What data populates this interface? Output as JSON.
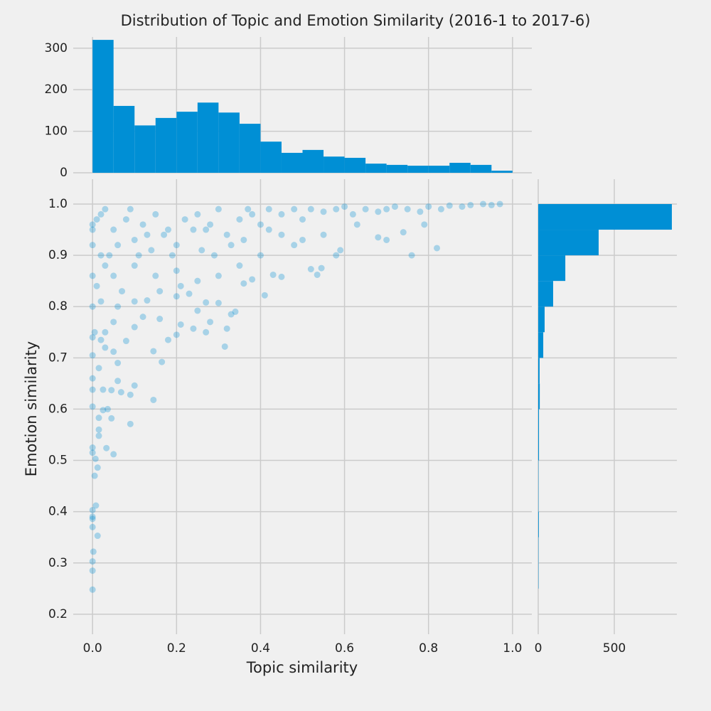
{
  "chart_data": [
    {
      "type": "scatter",
      "title": "Distribution of Topic and Emotion Similarity (2016-1 to 2017-6)",
      "xlabel": "Topic similarity",
      "ylabel": "Emotion similarity",
      "color": "#008fd5",
      "grid": true,
      "xlim": [
        -0.046,
        1.046
      ],
      "ylim": [
        0.161,
        1.0485
      ],
      "xticks": [
        {
          "value": 0,
          "label": "0.0"
        },
        0.2,
        0.4,
        0.6,
        0.8,
        {
          "value": 1,
          "label": "1.0"
        }
      ],
      "yticks": [
        0.2,
        0.3,
        0.4,
        0.5,
        0.6,
        0.7,
        0.8,
        0.9,
        {
          "value": 1,
          "label": "1.0"
        }
      ],
      "x": [
        0,
        0,
        0,
        0.002,
        0.012,
        0,
        0,
        0,
        0,
        0.008,
        0.005,
        0.012,
        0.007,
        0,
        0,
        0.05,
        0.033,
        0.015,
        0.015,
        0.045,
        0.09,
        0.015,
        0.025,
        0,
        0.036,
        0.145,
        0,
        0.025,
        0.045,
        0.068,
        0.09,
        0.1,
        0.06,
        0,
        0.015,
        0.06,
        0.165,
        0,
        0.05,
        0.145,
        0.08,
        0.02,
        0,
        0.18,
        0.315,
        0.03,
        0.1,
        0.2,
        0.27,
        0.24,
        0.32,
        0.28,
        0.21,
        0.05,
        0.16,
        0.25,
        0.12,
        0.33,
        0.34,
        0,
        0.06,
        0.02,
        0.1,
        0.13,
        0.2,
        0.23,
        0.27,
        0.3,
        0.41,
        0.36,
        0.43,
        0.38,
        0.52,
        0.535,
        0.545,
        0.45,
        0.58,
        0.59,
        0.7,
        0.68,
        0.76,
        0.82,
        0.74,
        0.79,
        0.63,
        0.55,
        0.5,
        0.48,
        0.45,
        0.4,
        0.35,
        0.3,
        0.25,
        0.2,
        0.15,
        0.1,
        0.05,
        0.02,
        0,
        0,
        0,
        0.01,
        0.02,
        0.03,
        0.05,
        0.08,
        0.1,
        0.12,
        0.15,
        0.18,
        0.2,
        0.22,
        0.25,
        0.28,
        0.3,
        0.32,
        0.35,
        0.38,
        0.4,
        0.42,
        0.45,
        0.48,
        0.5,
        0.52,
        0.55,
        0.58,
        0.6,
        0.62,
        0.65,
        0.68,
        0.7,
        0.72,
        0.75,
        0.78,
        0.8,
        0.83,
        0.85,
        0.88,
        0.9,
        0.93,
        0.95,
        0.97,
        0.06,
        0.14,
        0.26,
        0.33,
        0.09,
        0.17,
        0.24,
        0.36,
        0.01,
        0.03,
        0.11,
        0.19,
        0.29,
        0.42,
        0.07,
        0.16,
        0.21,
        0.005,
        0.03,
        0,
        0.04,
        0.27,
        0.13,
        0.37
      ],
      "y": [
        0.248,
        0.285,
        0.303,
        0.322,
        0.353,
        0.37,
        0.39,
        0.386,
        0.403,
        0.412,
        0.47,
        0.486,
        0.503,
        0.515,
        0.525,
        0.512,
        0.524,
        0.548,
        0.56,
        0.582,
        0.571,
        0.583,
        0.598,
        0.605,
        0.6,
        0.618,
        0.638,
        0.638,
        0.637,
        0.633,
        0.628,
        0.646,
        0.655,
        0.66,
        0.68,
        0.69,
        0.692,
        0.705,
        0.712,
        0.713,
        0.733,
        0.735,
        0.74,
        0.735,
        0.722,
        0.75,
        0.76,
        0.745,
        0.75,
        0.757,
        0.757,
        0.77,
        0.765,
        0.77,
        0.776,
        0.792,
        0.78,
        0.785,
        0.79,
        0.8,
        0.8,
        0.81,
        0.81,
        0.812,
        0.82,
        0.825,
        0.808,
        0.807,
        0.822,
        0.845,
        0.862,
        0.853,
        0.873,
        0.862,
        0.875,
        0.858,
        0.9,
        0.91,
        0.93,
        0.935,
        0.9,
        0.914,
        0.945,
        0.96,
        0.96,
        0.94,
        0.93,
        0.92,
        0.94,
        0.9,
        0.88,
        0.86,
        0.85,
        0.87,
        0.86,
        0.88,
        0.86,
        0.9,
        0.92,
        0.95,
        0.96,
        0.97,
        0.98,
        0.99,
        0.95,
        0.97,
        0.93,
        0.96,
        0.98,
        0.95,
        0.92,
        0.97,
        0.98,
        0.96,
        0.99,
        0.94,
        0.97,
        0.98,
        0.96,
        0.99,
        0.98,
        0.99,
        0.97,
        0.99,
        0.985,
        0.99,
        0.995,
        0.98,
        0.99,
        0.985,
        0.99,
        0.995,
        0.99,
        0.985,
        0.995,
        0.99,
        0.997,
        0.995,
        0.998,
        1,
        0.998,
        1,
        0.92,
        0.91,
        0.91,
        0.92,
        0.99,
        0.94,
        0.95,
        0.93,
        0.84,
        0.88,
        0.9,
        0.9,
        0.9,
        0.95,
        0.83,
        0.83,
        0.84,
        0.75,
        0.72,
        0.86,
        0.9,
        0.95,
        0.94,
        0.99
      ]
    },
    {
      "type": "histogram",
      "orientation": "vertical",
      "color": "#008fd5",
      "bins": [
        0,
        0.05,
        0.1,
        0.15,
        0.2,
        0.25,
        0.3,
        0.35,
        0.4,
        0.45,
        0.5,
        0.55,
        0.6,
        0.65,
        0.7,
        0.75,
        0.8,
        0.85,
        0.9,
        0.95,
        1
      ],
      "counts": [
        320,
        161,
        114,
        132,
        147,
        169,
        145,
        118,
        75,
        48,
        55,
        39,
        36,
        22,
        19,
        17,
        17,
        24,
        19,
        5
      ],
      "xlim": [
        -0.046,
        1.046
      ],
      "ylim": [
        0,
        327
      ],
      "yticks": [
        0,
        100,
        200,
        300
      ]
    },
    {
      "type": "histogram",
      "orientation": "horizontal",
      "color": "#008fd5",
      "bins": [
        0.25,
        0.3,
        0.35,
        0.4,
        0.45,
        0.5,
        0.55,
        0.6,
        0.65,
        0.7,
        0.75,
        0.8,
        0.85,
        0.9,
        0.95,
        1
      ],
      "counts": [
        2,
        2,
        4,
        2,
        2,
        5,
        5,
        10,
        9,
        33,
        42,
        98,
        178,
        397,
        878
      ],
      "xlim": [
        0,
        911
      ],
      "ylim": [
        0.161,
        1.0485
      ],
      "xticks": [
        0,
        500
      ]
    }
  ]
}
